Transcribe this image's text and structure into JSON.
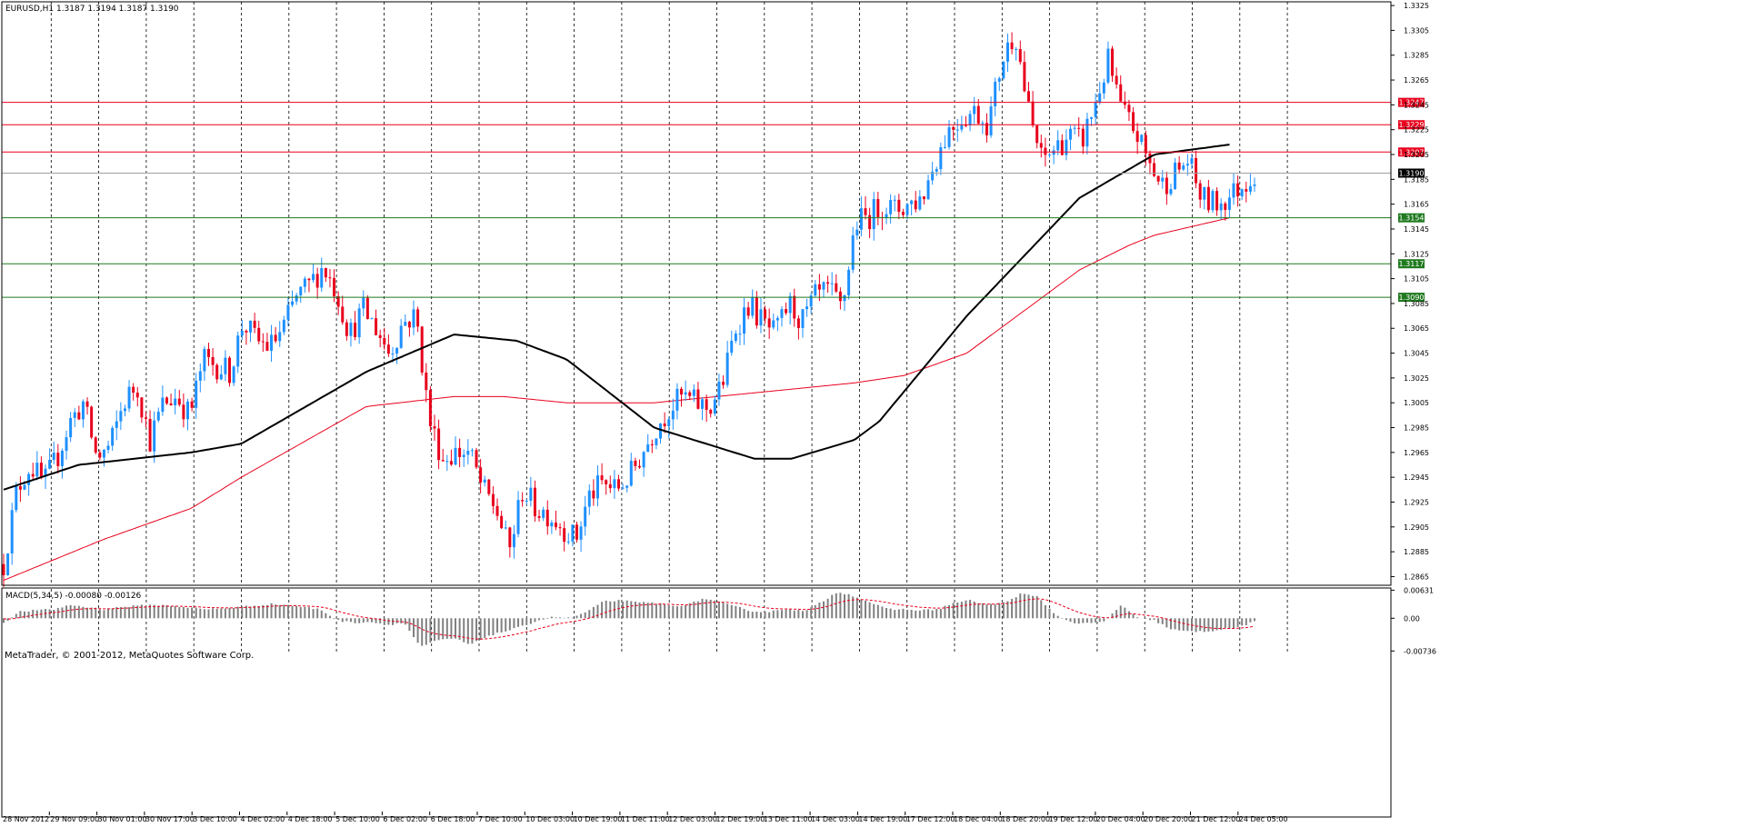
{
  "header": {
    "symbol_line": "EURUSD,H1  1.3187 1.3194 1.3187 1.3190",
    "macd_label": "MACD(5,34,5) -0.00080 -0.00126",
    "copyright": "MetaTrader, © 2001-2012, MetaQuotes Software Corp."
  },
  "colors": {
    "bull_candle": "#1e90ff",
    "bear_candle": "#e8001c",
    "ma_black": "#000000",
    "ma_red": "#e8001c",
    "resistance": "#e8001c",
    "support": "#1f7a1f",
    "current_price_line": "#a0a0a0",
    "macd_hist": "#808080",
    "macd_signal": "#e8001c"
  },
  "chart_data": [
    {
      "type": "candlestick",
      "symbol": "EURUSD",
      "timeframe": "H1",
      "ohlc_last": {
        "open": 1.3187,
        "high": 1.3194,
        "low": 1.3187,
        "close": 1.319
      },
      "current_price_label": "1.3190",
      "current_price": 1.319,
      "ylim": [
        1.2858,
        1.3328
      ],
      "y_ticks": [
        "1.3325",
        "1.3305",
        "1.3285",
        "1.3265",
        "1.3245",
        "1.3225",
        "1.3205",
        "1.3185",
        "1.3165",
        "1.3145",
        "1.3125",
        "1.3105",
        "1.3085",
        "1.3065",
        "1.3045",
        "1.3025",
        "1.3005",
        "1.2985",
        "1.2965",
        "1.2945",
        "1.2925",
        "1.2905",
        "1.2885",
        "1.2865"
      ],
      "x_ticks": [
        "28 Nov 2012",
        "29 Nov 09:00",
        "30 Nov 01:00",
        "30 Nov 17:00",
        "3 Dec 10:00",
        "4 Dec 02:00",
        "4 Dec 18:00",
        "5 Dec 10:00",
        "6 Dec 02:00",
        "6 Dec 18:00",
        "7 Dec 10:00",
        "10 Dec 03:00",
        "10 Dec 19:00",
        "11 Dec 11:00",
        "12 Dec 03:00",
        "12 Dec 19:00",
        "13 Dec 11:00",
        "14 Dec 03:00",
        "14 Dec 19:00",
        "17 Dec 12:00",
        "18 Dec 04:00",
        "18 Dec 20:00",
        "19 Dec 12:00",
        "20 Dec 04:00",
        "20 Dec 20:00",
        "21 Dec 12:00",
        "24 Dec 05:00"
      ],
      "price_path": [
        1.2875,
        1.2935,
        1.2955,
        1.294,
        1.296,
        1.299,
        1.3005,
        1.296,
        1.297,
        1.3005,
        1.302,
        1.2975,
        1.3005,
        1.301,
        1.2995,
        1.304,
        1.3035,
        1.303,
        1.307,
        1.3055,
        1.305,
        1.3065,
        1.309,
        1.31,
        1.3115,
        1.3095,
        1.306,
        1.308,
        1.3065,
        1.3045,
        1.307,
        1.3075,
        1.299,
        1.296,
        1.2965,
        1.2965,
        1.2935,
        1.292,
        1.2885,
        1.2935,
        1.292,
        1.2915,
        1.2905,
        1.2895,
        1.293,
        1.294,
        1.2935,
        1.2945,
        1.2965,
        1.2985,
        1.3,
        1.301,
        1.3005,
        1.3,
        1.302,
        1.3065,
        1.3085,
        1.307,
        1.306,
        1.3085,
        1.307,
        1.309,
        1.3095,
        1.308,
        1.315,
        1.3155,
        1.3165,
        1.316,
        1.3165,
        1.317,
        1.32,
        1.3225,
        1.3235,
        1.324,
        1.323,
        1.328,
        1.3305,
        1.324,
        1.32,
        1.321,
        1.322,
        1.3215,
        1.3245,
        1.328,
        1.324,
        1.3225,
        1.32,
        1.318,
        1.319,
        1.32,
        1.317,
        1.3165,
        1.317,
        1.318,
        1.319
      ],
      "ma_black": {
        "x_fraction": [
          0,
          0.06,
          0.15,
          0.19,
          0.29,
          0.36,
          0.41,
          0.45,
          0.52,
          0.6,
          0.63,
          0.68,
          0.7,
          0.77,
          0.86,
          0.92,
          0.98
        ],
        "values": [
          1.2935,
          1.2955,
          1.2965,
          1.2972,
          1.303,
          1.306,
          1.3055,
          1.304,
          1.2985,
          1.296,
          1.296,
          1.2975,
          1.299,
          1.3075,
          1.317,
          1.3205,
          1.3213
        ]
      },
      "ma_red": {
        "x_fraction": [
          0,
          0.08,
          0.15,
          0.19,
          0.29,
          0.36,
          0.4,
          0.45,
          0.52,
          0.6,
          0.63,
          0.68,
          0.72,
          0.77,
          0.86,
          0.9,
          0.92,
          0.98
        ],
        "values": [
          1.2862,
          1.2895,
          1.292,
          1.2945,
          1.3002,
          1.301,
          1.301,
          1.3005,
          1.3005,
          1.3013,
          1.3016,
          1.3021,
          1.3027,
          1.3045,
          1.3112,
          1.3132,
          1.314,
          1.3154
        ]
      },
      "levels": [
        {
          "kind": "resistance",
          "value": 1.3247,
          "label": "1.3247"
        },
        {
          "kind": "resistance",
          "value": 1.3229,
          "label": "1.3229"
        },
        {
          "kind": "resistance",
          "value": 1.3207,
          "label": "1.3207"
        },
        {
          "kind": "support",
          "value": 1.3154,
          "label": "1.3154"
        },
        {
          "kind": "support",
          "value": 1.3117,
          "label": "1.3117"
        },
        {
          "kind": "support",
          "value": 1.309,
          "label": "1.3090"
        }
      ]
    },
    {
      "type": "bar",
      "indicator": "MACD",
      "params": "5,34,5",
      "main": -0.0008,
      "signal": -0.00126,
      "ylim": [
        -0.0075,
        0.0066
      ],
      "y_ticks": [
        "0.00631",
        "0.00",
        "-0.00736"
      ],
      "hist_path": [
        -0.001,
        0.0015,
        0.0018,
        0.002,
        0.003,
        0.0025,
        0.002,
        0.0025,
        0.0028,
        0.003,
        0.0028,
        0.0025,
        0.002,
        0.0022,
        0.0025,
        0.0028,
        0.0032,
        0.003,
        0.0025,
        0.002,
        -0.0005,
        -0.001,
        -0.0008,
        -0.0015,
        -0.001,
        -0.0065,
        -0.005,
        -0.0045,
        -0.006,
        -0.004,
        -0.003,
        -0.002,
        -0.0005,
        0.0003,
        0.0,
        0.0015,
        0.0038,
        0.004,
        0.0035,
        0.0035,
        0.0028,
        0.003,
        0.0045,
        0.0035,
        0.0025,
        0.0015,
        0.0015,
        0.0022,
        0.0015,
        0.0035,
        0.006,
        0.005,
        0.0035,
        0.002,
        0.002,
        0.0018,
        0.002,
        0.0035,
        0.004,
        0.003,
        0.0035,
        0.0055,
        0.0048,
        0.001,
        -0.001,
        -0.0012,
        -0.0008,
        0.003,
        0.0,
        -0.0005,
        -0.0025,
        -0.003,
        -0.003,
        -0.0025,
        -0.002,
        -0.0008
      ]
    }
  ]
}
